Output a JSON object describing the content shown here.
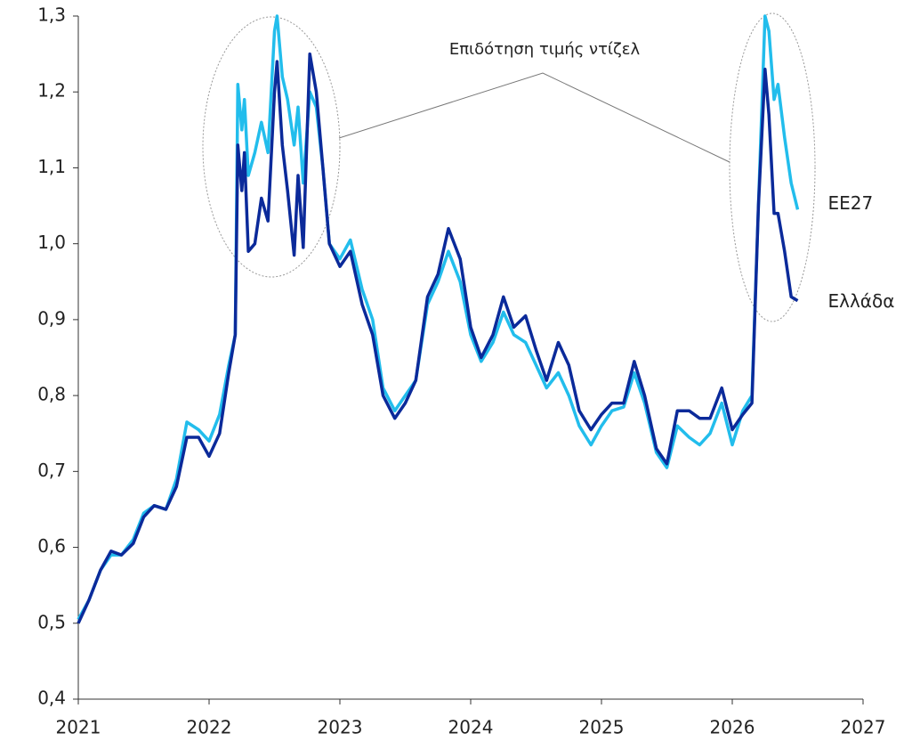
{
  "chart_data": {
    "type": "line",
    "annotation": "Επιδότηση τιμής ντίζελ",
    "x": [
      2021.0,
      2021.08,
      2021.17,
      2021.25,
      2021.33,
      2021.42,
      2021.5,
      2021.58,
      2021.67,
      2021.75,
      2021.83,
      2021.92,
      2022.0,
      2022.08,
      2022.15,
      2022.2,
      2022.22,
      2022.25,
      2022.27,
      2022.3,
      2022.35,
      2022.4,
      2022.45,
      2022.5,
      2022.52,
      2022.56,
      2022.6,
      2022.65,
      2022.68,
      2022.72,
      2022.77,
      2022.82,
      2022.87,
      2022.92,
      2023.0,
      2023.08,
      2023.17,
      2023.25,
      2023.33,
      2023.42,
      2023.5,
      2023.58,
      2023.67,
      2023.75,
      2023.83,
      2023.92,
      2024.0,
      2024.08,
      2024.17,
      2024.25,
      2024.33,
      2024.42,
      2024.5,
      2024.58,
      2024.67,
      2024.75,
      2024.83,
      2024.92,
      2025.0,
      2025.08,
      2025.17,
      2025.25,
      2025.33,
      2025.42,
      2025.5,
      2025.58,
      2025.67,
      2025.75,
      2025.83,
      2025.92,
      2026.0,
      2026.08,
      2026.15,
      2026.2,
      2026.25,
      2026.28,
      2026.32,
      2026.35,
      2026.4,
      2026.45,
      2026.5
    ],
    "series": [
      {
        "name": "ΕΕ27",
        "color": "#22bdec",
        "values": [
          0.505,
          0.53,
          0.57,
          0.59,
          0.59,
          0.61,
          0.645,
          0.655,
          0.65,
          0.69,
          0.765,
          0.755,
          0.74,
          0.775,
          0.84,
          0.88,
          1.21,
          1.15,
          1.19,
          1.09,
          1.12,
          1.16,
          1.12,
          1.28,
          1.3,
          1.22,
          1.19,
          1.13,
          1.18,
          1.08,
          1.2,
          1.18,
          1.1,
          1.0,
          0.98,
          1.005,
          0.94,
          0.9,
          0.81,
          0.78,
          0.8,
          0.82,
          0.92,
          0.95,
          0.99,
          0.95,
          0.88,
          0.845,
          0.87,
          0.91,
          0.88,
          0.87,
          0.84,
          0.81,
          0.83,
          0.8,
          0.76,
          0.735,
          0.76,
          0.78,
          0.785,
          0.83,
          0.79,
          0.725,
          0.705,
          0.76,
          0.745,
          0.735,
          0.75,
          0.79,
          0.735,
          0.78,
          0.8,
          1.05,
          1.3,
          1.28,
          1.19,
          1.21,
          1.14,
          1.08,
          1.045
        ]
      },
      {
        "name": "Ελλάδα",
        "color": "#0b2a9a",
        "values": [
          0.5,
          0.53,
          0.57,
          0.595,
          0.59,
          0.605,
          0.64,
          0.655,
          0.65,
          0.68,
          0.745,
          0.745,
          0.72,
          0.75,
          0.83,
          0.88,
          1.13,
          1.07,
          1.12,
          0.99,
          1.0,
          1.06,
          1.03,
          1.2,
          1.24,
          1.13,
          1.07,
          0.985,
          1.09,
          0.995,
          1.25,
          1.2,
          1.1,
          1.0,
          0.97,
          0.99,
          0.92,
          0.88,
          0.8,
          0.77,
          0.79,
          0.82,
          0.93,
          0.96,
          1.02,
          0.98,
          0.89,
          0.85,
          0.88,
          0.93,
          0.89,
          0.905,
          0.86,
          0.82,
          0.87,
          0.84,
          0.78,
          0.755,
          0.775,
          0.79,
          0.79,
          0.845,
          0.8,
          0.73,
          0.71,
          0.78,
          0.78,
          0.77,
          0.77,
          0.81,
          0.755,
          0.775,
          0.79,
          1.05,
          1.23,
          1.17,
          1.04,
          1.04,
          0.99,
          0.93,
          0.925
        ]
      }
    ],
    "xlim": [
      2021,
      2027
    ],
    "xticks": [
      2021,
      2022,
      2023,
      2024,
      2025,
      2026,
      2027
    ],
    "ylim": [
      0.4,
      1.3
    ],
    "yticks": [
      {
        "value": 0.4,
        "label": "0,4"
      },
      {
        "value": 0.5,
        "label": "0,5"
      },
      {
        "value": 0.6,
        "label": "0,6"
      },
      {
        "value": 0.7,
        "label": "0,7"
      },
      {
        "value": 0.8,
        "label": "0,8"
      },
      {
        "value": 0.9,
        "label": "0,9"
      },
      {
        "value": 1.0,
        "label": "1,0"
      },
      {
        "value": 1.1,
        "label": "1,1"
      },
      {
        "value": 1.2,
        "label": "1,2"
      },
      {
        "value": 1.3,
        "label": "1,3"
      }
    ],
    "grid": false
  }
}
